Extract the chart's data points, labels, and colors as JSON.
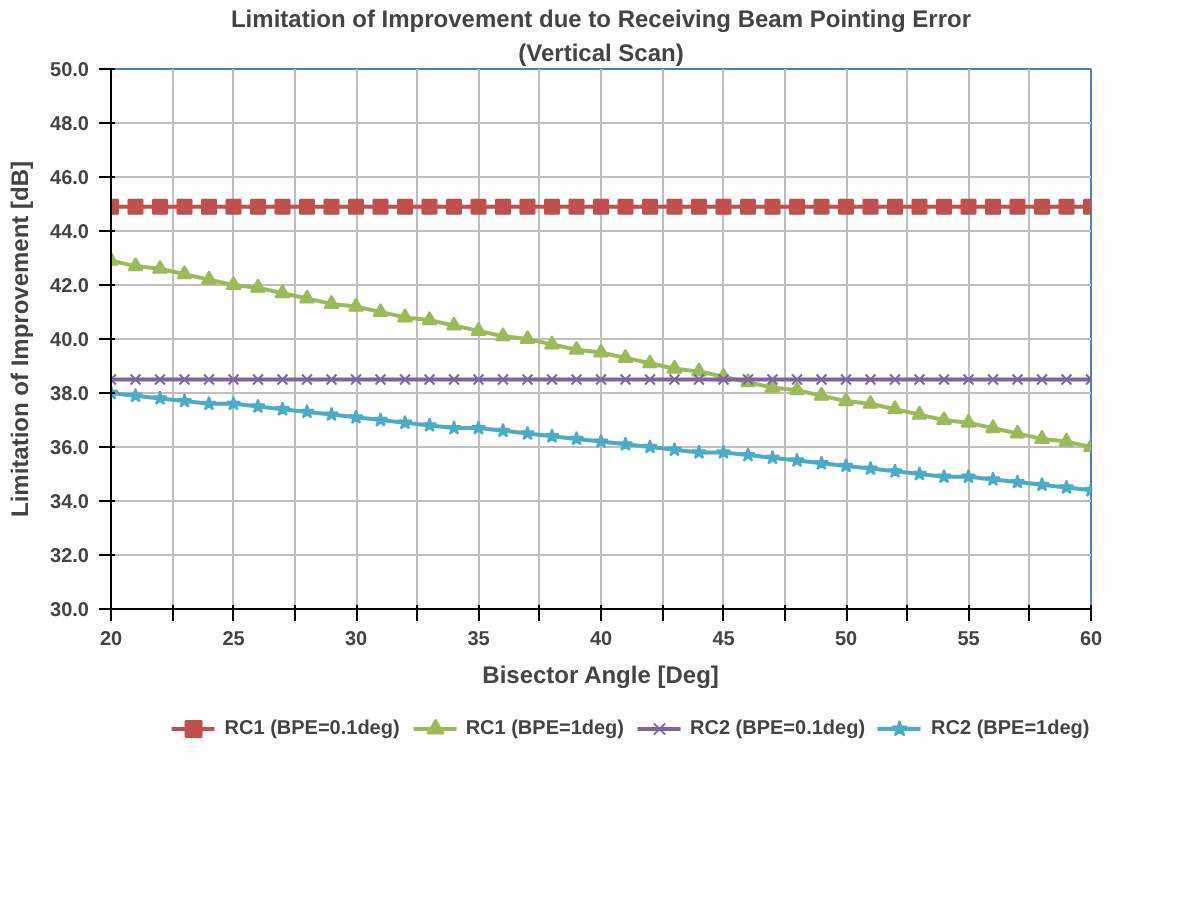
{
  "chart_data": {
    "type": "line",
    "title": "Limitation of Improvement due to Receiving Beam Pointing Error",
    "subtitle": "(Vertical Scan)",
    "xlabel": "Bisector Angle [Deg]",
    "ylabel": "Limitation of Improvement [dB]",
    "x": [
      20,
      21,
      22,
      23,
      24,
      25,
      26,
      27,
      28,
      29,
      30,
      31,
      32,
      33,
      34,
      35,
      36,
      37,
      38,
      39,
      40,
      41,
      42,
      43,
      44,
      45,
      46,
      47,
      48,
      49,
      50,
      51,
      52,
      53,
      54,
      55,
      56,
      57,
      58,
      59,
      60
    ],
    "series": [
      {
        "name": "RC1 (BPE=0.1deg)",
        "color": "#c0504d",
        "marker": "square",
        "values": [
          44.9,
          44.9,
          44.9,
          44.9,
          44.9,
          44.9,
          44.9,
          44.9,
          44.9,
          44.9,
          44.9,
          44.9,
          44.9,
          44.9,
          44.9,
          44.9,
          44.9,
          44.9,
          44.9,
          44.9,
          44.9,
          44.9,
          44.9,
          44.9,
          44.9,
          44.9,
          44.9,
          44.9,
          44.9,
          44.9,
          44.9,
          44.9,
          44.9,
          44.9,
          44.9,
          44.9,
          44.9,
          44.9,
          44.9,
          44.9,
          44.9
        ]
      },
      {
        "name": "RC1 (BPE=1deg)",
        "color": "#9bbb59",
        "marker": "triangle",
        "values": [
          42.9,
          42.7,
          42.6,
          42.4,
          42.2,
          42.0,
          41.9,
          41.7,
          41.5,
          41.3,
          41.2,
          41.0,
          40.8,
          40.7,
          40.5,
          40.3,
          40.1,
          40.0,
          39.8,
          39.6,
          39.5,
          39.3,
          39.1,
          38.9,
          38.8,
          38.6,
          38.4,
          38.2,
          38.1,
          37.9,
          37.7,
          37.6,
          37.4,
          37.2,
          37.0,
          36.9,
          36.7,
          36.5,
          36.3,
          36.2,
          36.0
        ]
      },
      {
        "name": "RC2 (BPE=0.1deg)",
        "color": "#8064a2",
        "marker": "cross",
        "values": [
          38.5,
          38.5,
          38.5,
          38.5,
          38.5,
          38.5,
          38.5,
          38.5,
          38.5,
          38.5,
          38.5,
          38.5,
          38.5,
          38.5,
          38.5,
          38.5,
          38.5,
          38.5,
          38.5,
          38.5,
          38.5,
          38.5,
          38.5,
          38.5,
          38.5,
          38.5,
          38.5,
          38.5,
          38.5,
          38.5,
          38.5,
          38.5,
          38.5,
          38.5,
          38.5,
          38.5,
          38.5,
          38.5,
          38.5,
          38.5,
          38.5
        ]
      },
      {
        "name": "RC2 (BPE=1deg)",
        "color": "#4bacc6",
        "marker": "star",
        "values": [
          38.0,
          37.9,
          37.8,
          37.7,
          37.6,
          37.6,
          37.5,
          37.4,
          37.3,
          37.2,
          37.1,
          37.0,
          36.9,
          36.8,
          36.7,
          36.7,
          36.6,
          36.5,
          36.4,
          36.3,
          36.2,
          36.1,
          36.0,
          35.9,
          35.8,
          35.8,
          35.7,
          35.6,
          35.5,
          35.4,
          35.3,
          35.2,
          35.1,
          35.0,
          34.9,
          34.9,
          34.8,
          34.7,
          34.6,
          34.5,
          34.4
        ]
      }
    ],
    "xlim": [
      20,
      60
    ],
    "xticks": [
      20,
      {
        "value": 22.5,
        "label": null
      },
      25,
      {
        "value": 27.5,
        "label": null
      },
      30,
      {
        "value": 32.5,
        "label": null
      },
      35,
      {
        "value": 37.5,
        "label": null
      },
      40,
      {
        "value": 42.5,
        "label": null
      },
      45,
      {
        "value": 47.5,
        "label": null
      },
      50,
      {
        "value": 52.5,
        "label": null
      },
      55,
      {
        "value": 57.5,
        "label": null
      },
      60
    ],
    "ylim": [
      30,
      50
    ],
    "yticks": [
      {
        "value": 30,
        "label": "30.0"
      },
      {
        "value": 32,
        "label": "32.0"
      },
      {
        "value": 34,
        "label": "34.0"
      },
      {
        "value": 36,
        "label": "36.0"
      },
      {
        "value": 38,
        "label": "38.0"
      },
      {
        "value": 40,
        "label": "40.0"
      },
      {
        "value": 42,
        "label": "42.0"
      },
      {
        "value": 44,
        "label": "44.0"
      },
      {
        "value": 46,
        "label": "46.0"
      },
      {
        "value": 48,
        "label": "48.0"
      },
      {
        "value": 50,
        "label": "50.0"
      }
    ],
    "grid": true,
    "legend": "bottom",
    "line_style": "solid"
  }
}
